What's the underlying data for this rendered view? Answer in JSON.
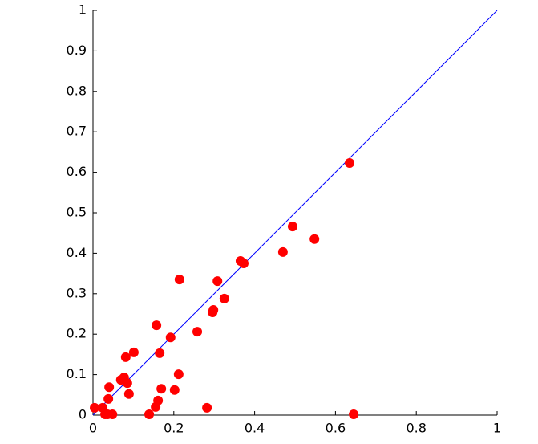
{
  "chart_data": {
    "type": "scatter",
    "x": [
      0.004,
      0.024,
      0.03,
      0.036,
      0.048,
      0.038,
      0.04,
      0.069,
      0.077,
      0.085,
      0.089,
      0.081,
      0.101,
      0.139,
      0.155,
      0.161,
      0.169,
      0.202,
      0.212,
      0.157,
      0.165,
      0.192,
      0.214,
      0.258,
      0.282,
      0.296,
      0.298,
      0.308,
      0.325,
      0.365,
      0.373,
      0.47,
      0.494,
      0.548,
      0.635,
      0.645
    ],
    "series": [
      {
        "color": "#ff0000",
        "values": [
          0.018,
          0.018,
          0.002,
          0.002,
          0.002,
          0.04,
          0.069,
          0.087,
          0.093,
          0.079,
          0.052,
          0.143,
          0.155,
          0.002,
          0.02,
          0.036,
          0.065,
          0.062,
          0.101,
          0.222,
          0.153,
          0.192,
          0.335,
          0.206,
          0.018,
          0.254,
          0.26,
          0.331,
          0.288,
          0.381,
          0.375,
          0.403,
          0.466,
          0.435,
          0.623,
          0.002
        ]
      }
    ],
    "reference_line": {
      "x": [
        0,
        1
      ],
      "y": [
        0,
        1
      ],
      "color": "#0000ff"
    },
    "xlim": [
      0,
      1
    ],
    "ylim": [
      0,
      1
    ],
    "xticks": [
      0,
      0.2,
      0.4,
      0.6,
      0.8,
      1
    ],
    "yticks": [
      0,
      0.1,
      0.2,
      0.3,
      0.4,
      0.5,
      0.6,
      0.7,
      0.8,
      0.9,
      1
    ]
  }
}
